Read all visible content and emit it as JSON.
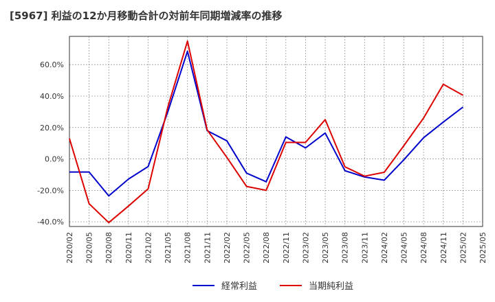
{
  "chart_data": {
    "type": "line",
    "title": "[5967]  利益の12か月移動合計の対前年同期増減率の推移",
    "xlabel": "",
    "ylabel": "",
    "ylim": [
      -43,
      78
    ],
    "yticks": [
      -40,
      -20,
      0,
      20,
      40,
      60
    ],
    "ytick_labels": [
      "-40.0%",
      "-20.0%",
      "0.0%",
      "20.0%",
      "40.0%",
      "60.0%"
    ],
    "categories": [
      "2020/02",
      "2020/05",
      "2020/08",
      "2020/11",
      "2021/02",
      "2021/05",
      "2021/08",
      "2021/11",
      "2022/02",
      "2022/05",
      "2022/08",
      "2022/11",
      "2023/02",
      "2023/05",
      "2023/08",
      "2023/11",
      "2024/02",
      "2024/05",
      "2024/08",
      "2024/11",
      "2025/02",
      "2025/05"
    ],
    "grid": true,
    "legend_position": "bottom",
    "series": [
      {
        "name": "経常利益",
        "color": "#0000cc",
        "values": [
          -8.3,
          -8.3,
          -23.5,
          -12.8,
          -4.8,
          30.0,
          68.5,
          18.0,
          11.5,
          -9.0,
          -14.5,
          14.0,
          7.0,
          16.5,
          -7.5,
          -11.5,
          -13.5,
          -0.5,
          13.5,
          23.5,
          33.0,
          null
        ]
      },
      {
        "name": "当期純利益",
        "color": "#dd0000",
        "values": [
          13.0,
          -28.5,
          -40.5,
          -30.0,
          -19.0,
          33.0,
          75.0,
          18.5,
          1.0,
          -17.5,
          -20.0,
          10.5,
          10.5,
          25.0,
          -5.0,
          -11.0,
          -8.5,
          8.5,
          26.0,
          47.5,
          40.5,
          null
        ]
      }
    ]
  }
}
